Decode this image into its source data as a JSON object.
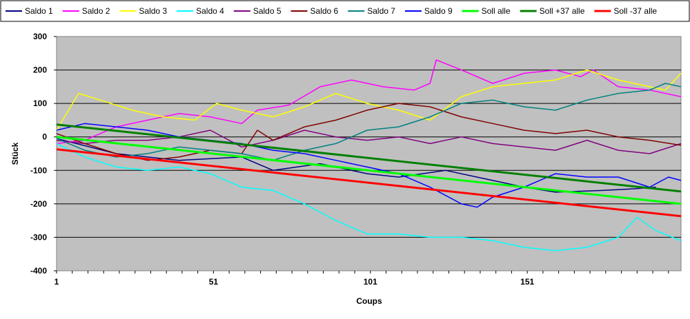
{
  "chart_data": {
    "type": "line",
    "xlabel": "Coups",
    "ylabel": "Stück",
    "xlim": [
      1,
      200
    ],
    "ylim": [
      -400,
      300
    ],
    "x_ticks": [
      1,
      51,
      101,
      151
    ],
    "y_ticks": [
      -400,
      -300,
      -200,
      -100,
      0,
      100,
      200,
      300
    ],
    "grid": "horizontal",
    "legend_position": "top",
    "plot_background": "#c0c0c0",
    "series": [
      {
        "name": "Saldo 1",
        "color": "#000080",
        "width": 1.5,
        "points": [
          [
            1,
            -5
          ],
          [
            20,
            -50
          ],
          [
            40,
            -70
          ],
          [
            60,
            -60
          ],
          [
            70,
            -100
          ],
          [
            85,
            -80
          ],
          [
            100,
            -110
          ],
          [
            110,
            -120
          ],
          [
            125,
            -100
          ],
          [
            140,
            -130
          ],
          [
            150,
            -150
          ],
          [
            160,
            -165
          ],
          [
            175,
            -160
          ],
          [
            185,
            -155
          ],
          [
            192,
            -150
          ]
        ]
      },
      {
        "name": "Saldo 2",
        "color": "#ff00ff",
        "width": 1.5,
        "points": [
          [
            1,
            -20
          ],
          [
            10,
            -10
          ],
          [
            20,
            30
          ],
          [
            30,
            50
          ],
          [
            40,
            70
          ],
          [
            50,
            60
          ],
          [
            60,
            40
          ],
          [
            65,
            80
          ],
          [
            75,
            95
          ],
          [
            85,
            150
          ],
          [
            95,
            170
          ],
          [
            105,
            150
          ],
          [
            115,
            140
          ],
          [
            120,
            160
          ],
          [
            122,
            230
          ],
          [
            130,
            200
          ],
          [
            140,
            160
          ],
          [
            150,
            190
          ],
          [
            160,
            200
          ],
          [
            168,
            180
          ],
          [
            172,
            200
          ],
          [
            180,
            150
          ],
          [
            190,
            140
          ],
          [
            200,
            120
          ]
        ]
      },
      {
        "name": "Saldo 3",
        "color": "#ffff00",
        "width": 1.5,
        "points": [
          [
            1,
            20
          ],
          [
            8,
            130
          ],
          [
            15,
            110
          ],
          [
            25,
            80
          ],
          [
            35,
            60
          ],
          [
            45,
            50
          ],
          [
            52,
            100
          ],
          [
            60,
            80
          ],
          [
            70,
            60
          ],
          [
            80,
            90
          ],
          [
            90,
            130
          ],
          [
            100,
            100
          ],
          [
            110,
            80
          ],
          [
            120,
            50
          ],
          [
            130,
            120
          ],
          [
            140,
            150
          ],
          [
            150,
            160
          ],
          [
            160,
            170
          ],
          [
            170,
            200
          ],
          [
            180,
            170
          ],
          [
            190,
            150
          ],
          [
            195,
            140
          ],
          [
            200,
            190
          ]
        ]
      },
      {
        "name": "Saldo 4",
        "color": "#00ffff",
        "width": 1.5,
        "points": [
          [
            1,
            -20
          ],
          [
            10,
            -60
          ],
          [
            20,
            -90
          ],
          [
            30,
            -100
          ],
          [
            40,
            -90
          ],
          [
            50,
            -110
          ],
          [
            60,
            -150
          ],
          [
            70,
            -160
          ],
          [
            80,
            -200
          ],
          [
            90,
            -250
          ],
          [
            100,
            -290
          ],
          [
            110,
            -290
          ],
          [
            120,
            -300
          ],
          [
            130,
            -300
          ],
          [
            140,
            -310
          ],
          [
            150,
            -330
          ],
          [
            160,
            -340
          ],
          [
            170,
            -330
          ],
          [
            180,
            -300
          ],
          [
            186,
            -240
          ],
          [
            192,
            -280
          ],
          [
            200,
            -310
          ]
        ]
      },
      {
        "name": "Saldo 5",
        "color": "#800080",
        "width": 1.5,
        "points": [
          [
            1,
            -10
          ],
          [
            10,
            -20
          ],
          [
            20,
            -10
          ],
          [
            30,
            -10
          ],
          [
            40,
            0
          ],
          [
            50,
            20
          ],
          [
            60,
            -30
          ],
          [
            70,
            -10
          ],
          [
            80,
            20
          ],
          [
            90,
            0
          ],
          [
            100,
            -10
          ],
          [
            110,
            0
          ],
          [
            120,
            -20
          ],
          [
            130,
            0
          ],
          [
            140,
            -20
          ],
          [
            150,
            -30
          ],
          [
            160,
            -40
          ],
          [
            170,
            -10
          ],
          [
            180,
            -40
          ],
          [
            190,
            -50
          ],
          [
            200,
            -20
          ]
        ]
      },
      {
        "name": "Saldo 6",
        "color": "#800000",
        "width": 1.5,
        "points": [
          [
            1,
            10
          ],
          [
            10,
            -20
          ],
          [
            20,
            -50
          ],
          [
            30,
            -70
          ],
          [
            40,
            -60
          ],
          [
            50,
            -40
          ],
          [
            60,
            -50
          ],
          [
            65,
            20
          ],
          [
            70,
            -10
          ],
          [
            80,
            30
          ],
          [
            90,
            50
          ],
          [
            100,
            80
          ],
          [
            110,
            100
          ],
          [
            120,
            90
          ],
          [
            130,
            60
          ],
          [
            140,
            40
          ],
          [
            150,
            20
          ],
          [
            160,
            10
          ],
          [
            170,
            20
          ],
          [
            180,
            0
          ],
          [
            190,
            -10
          ],
          [
            200,
            -25
          ]
        ]
      },
      {
        "name": "Saldo 7",
        "color": "#008080",
        "width": 1.5,
        "points": [
          [
            1,
            -5
          ],
          [
            10,
            -40
          ],
          [
            20,
            -60
          ],
          [
            30,
            -50
          ],
          [
            40,
            -30
          ],
          [
            50,
            -40
          ],
          [
            60,
            -50
          ],
          [
            70,
            -70
          ],
          [
            80,
            -40
          ],
          [
            90,
            -20
          ],
          [
            100,
            20
          ],
          [
            110,
            30
          ],
          [
            120,
            60
          ],
          [
            130,
            100
          ],
          [
            140,
            110
          ],
          [
            150,
            90
          ],
          [
            160,
            80
          ],
          [
            170,
            110
          ],
          [
            180,
            130
          ],
          [
            190,
            140
          ],
          [
            195,
            160
          ],
          [
            200,
            150
          ]
        ]
      },
      {
        "name": "Saldo 9",
        "color": "#0000ff",
        "width": 1.5,
        "points": [
          [
            1,
            20
          ],
          [
            10,
            40
          ],
          [
            20,
            30
          ],
          [
            30,
            20
          ],
          [
            40,
            0
          ],
          [
            50,
            -10
          ],
          [
            60,
            -20
          ],
          [
            70,
            -40
          ],
          [
            80,
            -50
          ],
          [
            90,
            -70
          ],
          [
            100,
            -90
          ],
          [
            110,
            -110
          ],
          [
            120,
            -150
          ],
          [
            130,
            -200
          ],
          [
            135,
            -210
          ],
          [
            140,
            -180
          ],
          [
            150,
            -150
          ],
          [
            160,
            -110
          ],
          [
            170,
            -120
          ],
          [
            180,
            -120
          ],
          [
            190,
            -150
          ],
          [
            196,
            -120
          ],
          [
            200,
            -130
          ]
        ]
      },
      {
        "name": "Soll alle",
        "color": "#00ff00",
        "width": 3,
        "points": [
          [
            1,
            0
          ],
          [
            200,
            -200
          ]
        ]
      },
      {
        "name": "Soll +37 alle",
        "color": "#008000",
        "width": 3,
        "points": [
          [
            1,
            37
          ],
          [
            200,
            -163
          ]
        ]
      },
      {
        "name": "Soll -37 alle",
        "color": "#ff0000",
        "width": 3,
        "points": [
          [
            1,
            -37
          ],
          [
            200,
            -237
          ]
        ]
      }
    ]
  }
}
